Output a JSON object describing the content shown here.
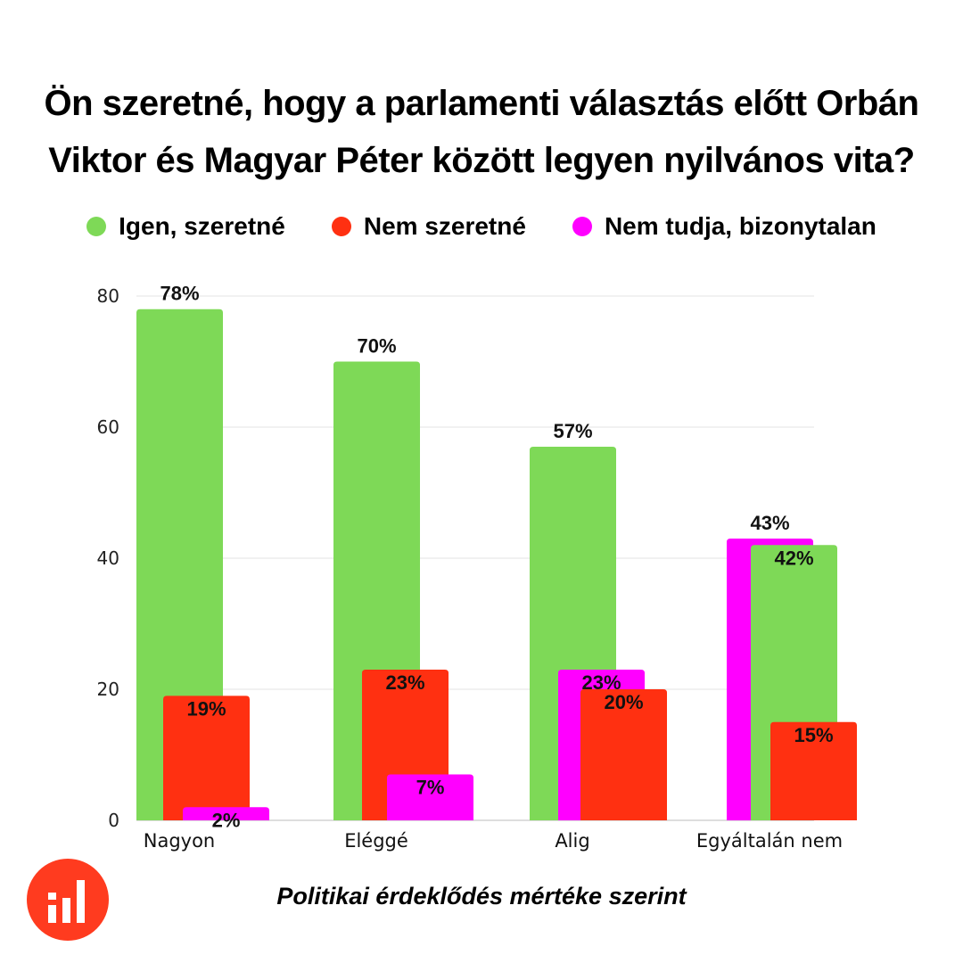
{
  "title_line1": "Ön szeretné, hogy a parlamenti választás előtt Orbán",
  "title_line2": "Viktor és Magyar Péter között legyen nyilvános vita?",
  "subtitle": "Politikai érdeklődés mértéke szerint",
  "colors": {
    "green": "#7ed957",
    "red": "#ff3011",
    "magenta": "#ff00ff",
    "logo": "#ff3b1f"
  },
  "chart_data": {
    "type": "bar",
    "title": "Ön szeretné, hogy a parlamenti választás előtt Orbán Viktor és Magyar Péter között legyen nyilvános vita?",
    "xlabel": "Politikai érdeklődés mértéke szerint",
    "ylabel": "",
    "ylim": [
      0,
      80
    ],
    "yticks": [
      0,
      20,
      40,
      60,
      80
    ],
    "grid": true,
    "legend_position": "top-center",
    "categories": [
      "Nagyon",
      "Eléggé",
      "Alig",
      "Egyáltalán nem"
    ],
    "series": [
      {
        "name": "Igen, szeretné",
        "color": "#7ed957",
        "values": [
          78,
          70,
          57,
          42
        ],
        "labels": [
          "78%",
          "70%",
          "57%",
          "42%"
        ]
      },
      {
        "name": "Nem szeretné",
        "color": "#ff3011",
        "values": [
          19,
          23,
          20,
          15
        ],
        "labels": [
          "19%",
          "23%",
          "20%",
          "15%"
        ]
      },
      {
        "name": "Nem tudja, bizonytalan",
        "color": "#ff00ff",
        "values": [
          2,
          7,
          23,
          43
        ],
        "labels": [
          "2%",
          "7%",
          "23%",
          "43%"
        ]
      }
    ]
  }
}
